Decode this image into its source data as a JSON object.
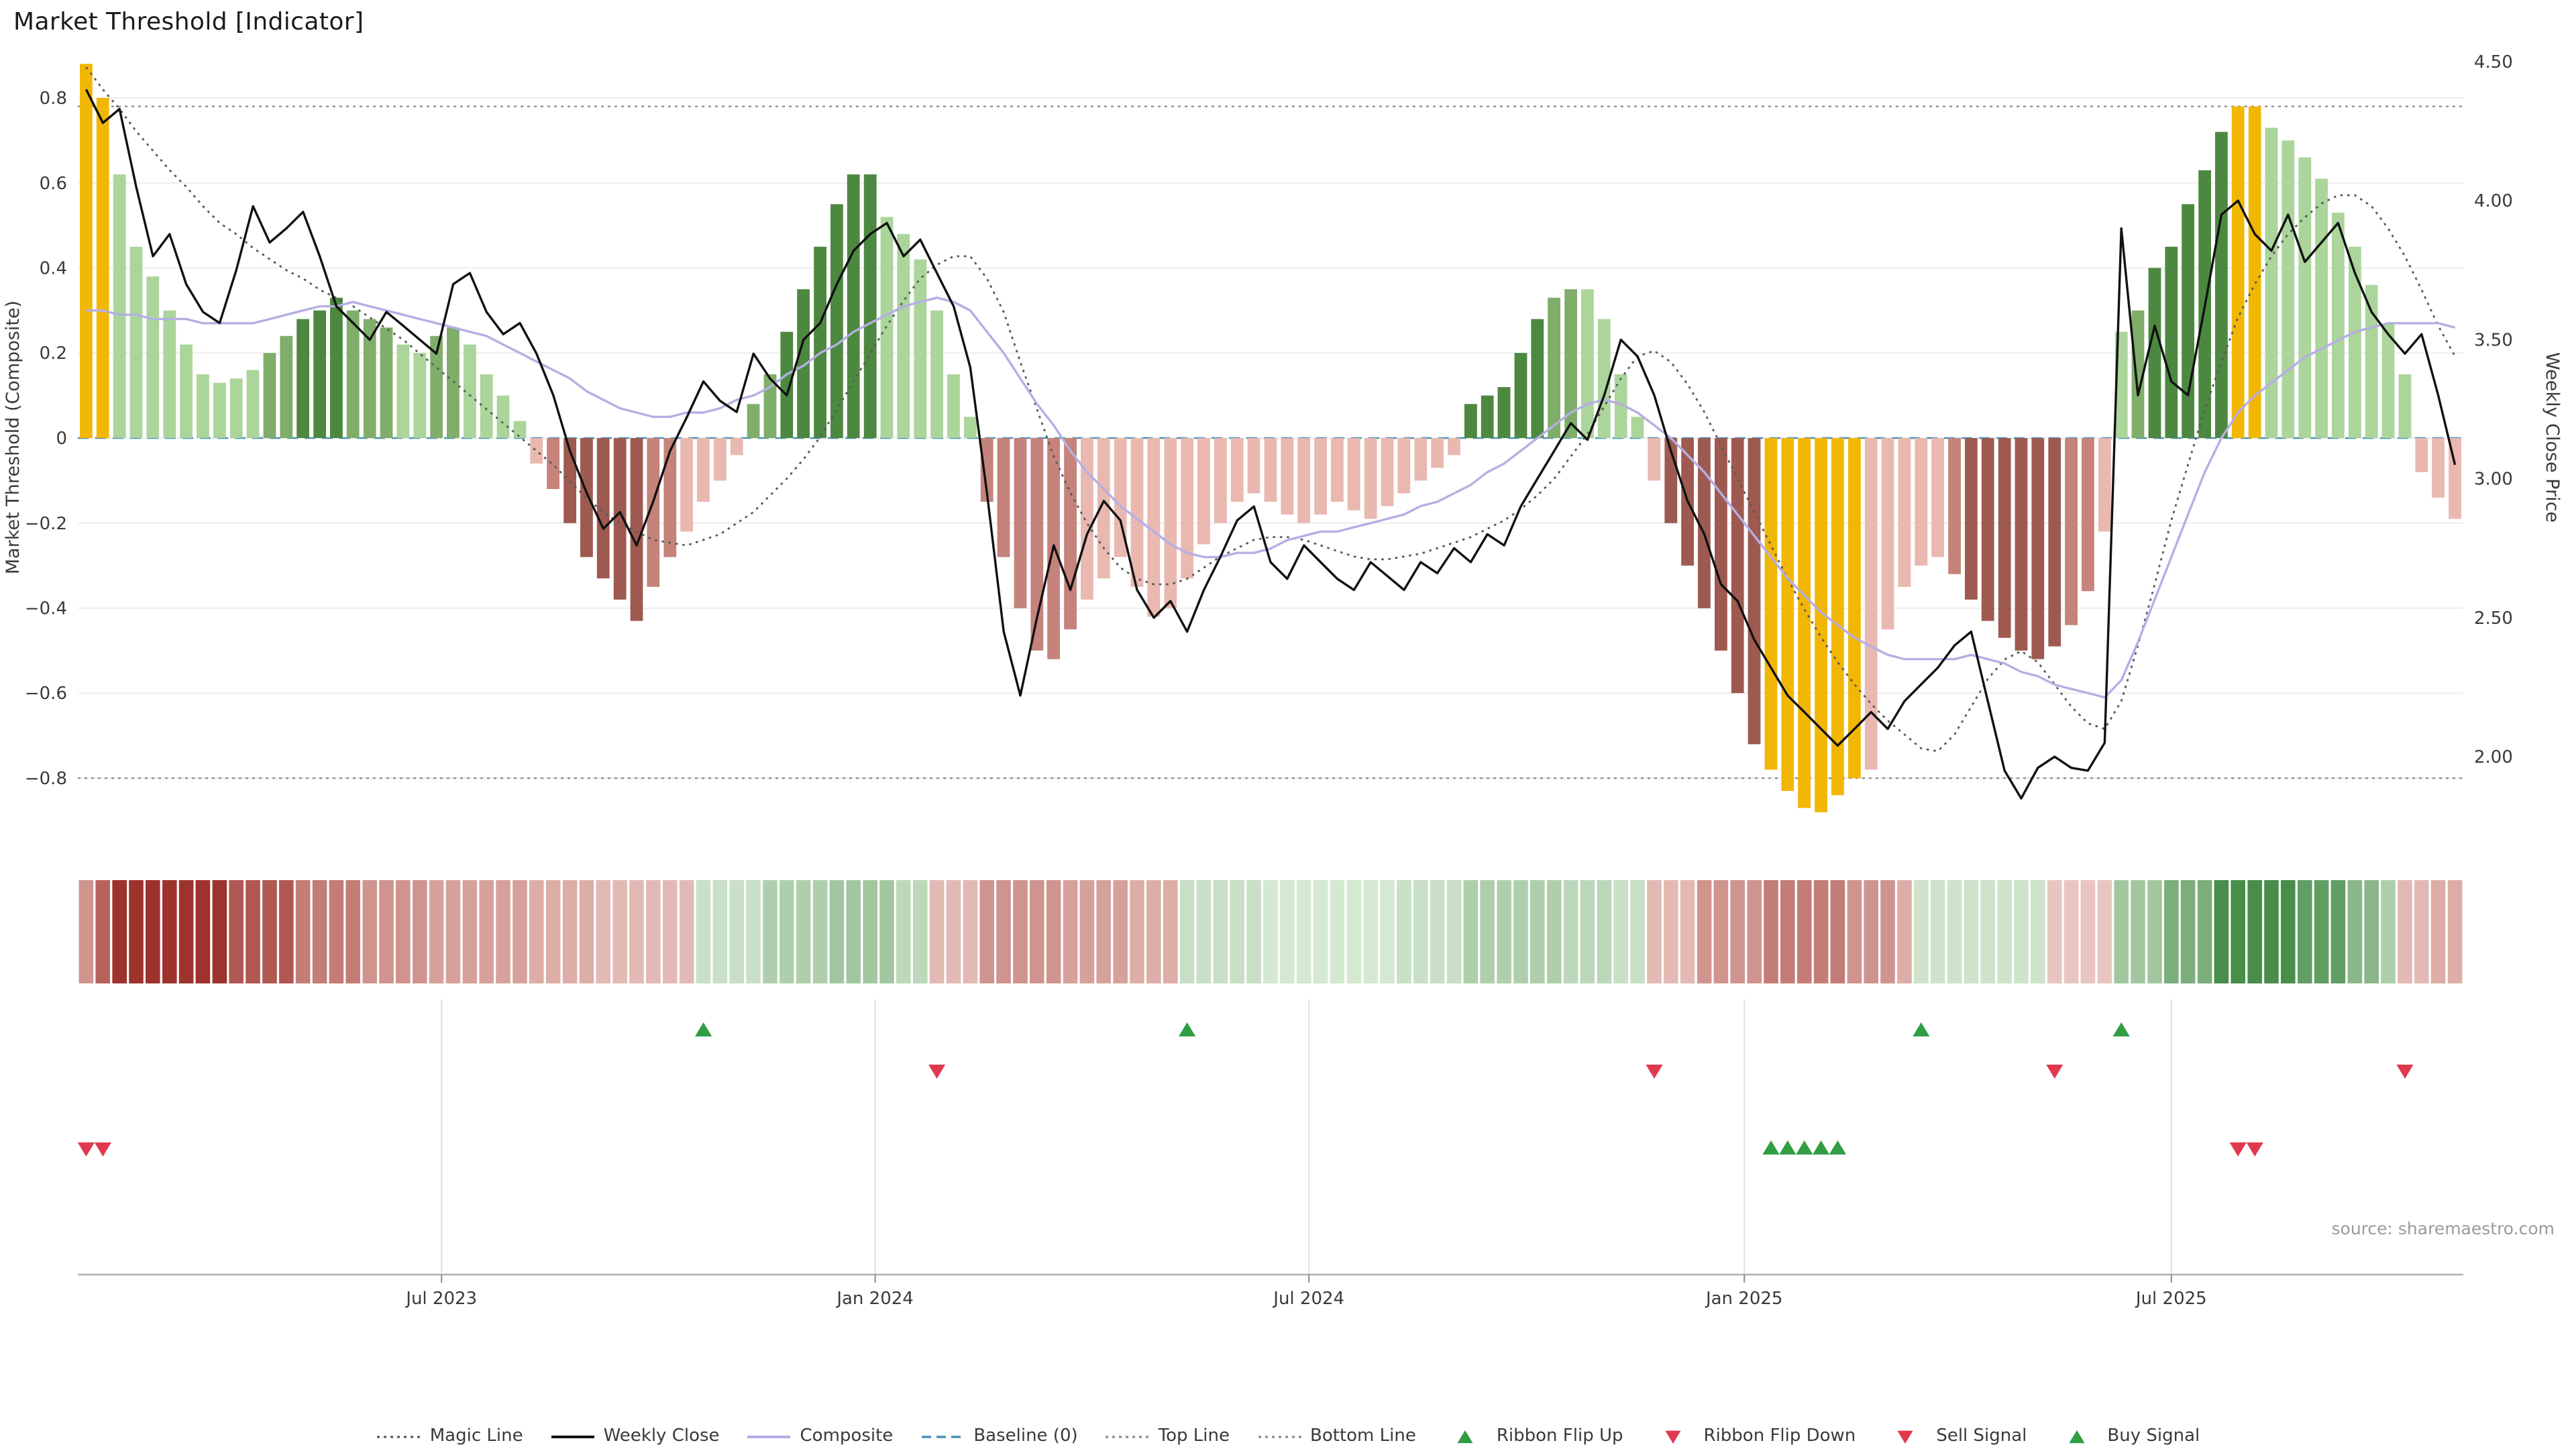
{
  "title": "Market Threshold [Indicator]",
  "source": "source: sharemaestro.com",
  "axes": {
    "left_label": "Market Threshold (Composite)",
    "right_label": "Weekly Close Price",
    "left_ticks": [
      "0.8",
      "0.6",
      "0.4",
      "0.2",
      "0",
      "−0.2",
      "−0.4",
      "−0.6",
      "−0.8"
    ],
    "left_tick_values": [
      0.8,
      0.6,
      0.4,
      0.2,
      0,
      -0.2,
      -0.4,
      -0.6,
      -0.8
    ],
    "right_ticks": [
      "4.50",
      "4.00",
      "3.50",
      "3.00",
      "2.50",
      "2.00"
    ],
    "right_tick_values": [
      4.5,
      4.0,
      3.5,
      3.0,
      2.5,
      2.0
    ],
    "x_ticks": [
      "Jul 2023",
      "Jan 2024",
      "Jul 2024",
      "Jan 2025",
      "Jul 2025"
    ],
    "x_tick_weeks": [
      21.8,
      47.8,
      73.8,
      99.9,
      125.5
    ]
  },
  "palette": {
    "bar_colors": {
      "au": "#f2b705",
      "g1": "#abd59b",
      "g2": "#7fae6a",
      "g3": "#4d8840",
      "r1": "#e9b8b1",
      "r2": "#c5837b",
      "r3": "#9e5a50"
    },
    "weekly_close": "#111111",
    "composite": "#b6aee4",
    "magic_line": "#5a5a5a",
    "baseline": "#4a90b8",
    "top_bottom": "#8a8a8a",
    "signal_green": "#2f9e44",
    "signal_red": "#e0394f",
    "ribbon_red_light": "#f6ded9",
    "ribbon_red_dark": "#9e322c",
    "ribbon_green_light": "#e2f0dd",
    "ribbon_green_dark": "#2f7d33",
    "grid": "#ededed",
    "axis_line": "#b0b0b0"
  },
  "chart_data": {
    "type": "combo (bar histogram + lines + ribbon heatmap + signal markers)",
    "n_weeks": 143,
    "left_axis_range": [
      -0.9,
      0.9
    ],
    "right_axis_range": [
      2.0,
      4.5
    ],
    "top_line": 0.78,
    "bottom_line": -0.8,
    "baseline": 0,
    "threshold_bars": {
      "values": [
        0.88,
        0.8,
        0.62,
        0.45,
        0.38,
        0.3,
        0.22,
        0.15,
        0.13,
        0.14,
        0.16,
        0.2,
        0.24,
        0.28,
        0.3,
        0.33,
        0.3,
        0.28,
        0.26,
        0.22,
        0.2,
        0.24,
        0.26,
        0.22,
        0.15,
        0.1,
        0.04,
        -0.06,
        -0.12,
        -0.2,
        -0.28,
        -0.33,
        -0.38,
        -0.43,
        -0.35,
        -0.28,
        -0.22,
        -0.15,
        -0.1,
        -0.04,
        0.08,
        0.15,
        0.25,
        0.35,
        0.45,
        0.55,
        0.62,
        0.62,
        0.52,
        0.48,
        0.42,
        0.3,
        0.15,
        0.05,
        -0.15,
        -0.28,
        -0.4,
        -0.5,
        -0.52,
        -0.45,
        -0.38,
        -0.33,
        -0.28,
        -0.35,
        -0.42,
        -0.4,
        -0.33,
        -0.25,
        -0.2,
        -0.15,
        -0.13,
        -0.15,
        -0.18,
        -0.2,
        -0.18,
        -0.15,
        -0.17,
        -0.19,
        -0.16,
        -0.13,
        -0.1,
        -0.07,
        -0.04,
        0.08,
        0.1,
        0.12,
        0.2,
        0.28,
        0.33,
        0.35,
        0.35,
        0.28,
        0.15,
        0.05,
        -0.1,
        -0.2,
        -0.3,
        -0.4,
        -0.5,
        -0.6,
        -0.72,
        -0.78,
        -0.83,
        -0.87,
        -0.88,
        -0.84,
        -0.8,
        -0.78,
        -0.45,
        -0.35,
        -0.3,
        -0.28,
        -0.32,
        -0.38,
        -0.43,
        -0.47,
        -0.5,
        -0.52,
        -0.49,
        -0.44,
        -0.36,
        -0.22,
        0.25,
        0.3,
        0.4,
        0.45,
        0.55,
        0.63,
        0.72,
        0.78,
        0.78,
        0.73,
        0.7,
        0.66,
        0.61,
        0.53,
        0.45,
        0.36,
        0.27,
        0.15,
        -0.08,
        -0.14,
        -0.19
      ],
      "colors": [
        "au",
        "au",
        "g1",
        "g1",
        "g1",
        "g1",
        "g1",
        "g1",
        "g1",
        "g1",
        "g1",
        "g2",
        "g2",
        "g3",
        "g3",
        "g3",
        "g2",
        "g2",
        "g2",
        "g1",
        "g1",
        "g2",
        "g2",
        "g1",
        "g1",
        "g1",
        "g1",
        "r1",
        "r2",
        "r3",
        "r3",
        "r3",
        "r3",
        "r3",
        "r2",
        "r2",
        "r1",
        "r1",
        "r1",
        "r1",
        "g2",
        "g2",
        "g3",
        "g3",
        "g3",
        "g3",
        "g3",
        "g3",
        "g1",
        "g1",
        "g1",
        "g1",
        "g1",
        "g1",
        "r2",
        "r2",
        "r2",
        "r2",
        "r2",
        "r2",
        "r1",
        "r1",
        "r1",
        "r1",
        "r1",
        "r1",
        "r1",
        "r1",
        "r1",
        "r1",
        "r1",
        "r1",
        "r1",
        "r1",
        "r1",
        "r1",
        "r1",
        "r1",
        "r1",
        "r1",
        "r1",
        "r1",
        "r1",
        "g3",
        "g3",
        "g3",
        "g3",
        "g3",
        "g2",
        "g2",
        "g1",
        "g1",
        "g1",
        "g1",
        "r1",
        "r3",
        "r3",
        "r3",
        "r3",
        "r3",
        "r3",
        "au",
        "au",
        "au",
        "au",
        "au",
        "au",
        "r1",
        "r1",
        "r1",
        "r1",
        "r1",
        "r2",
        "r3",
        "r3",
        "r3",
        "r3",
        "r3",
        "r3",
        "r2",
        "r2",
        "r1",
        "g1",
        "g2",
        "g3",
        "g3",
        "g3",
        "g3",
        "g3",
        "au",
        "au",
        "g1",
        "g1",
        "g1",
        "g1",
        "g1",
        "g1",
        "g1",
        "g1",
        "g1",
        "r1",
        "r1",
        "r1"
      ]
    },
    "weekly_close": [
      4.4,
      4.28,
      4.33,
      4.05,
      3.8,
      3.88,
      3.7,
      3.6,
      3.56,
      3.75,
      3.98,
      3.85,
      3.9,
      3.96,
      3.8,
      3.62,
      3.56,
      3.5,
      3.6,
      3.55,
      3.5,
      3.45,
      3.7,
      3.74,
      3.6,
      3.52,
      3.56,
      3.45,
      3.3,
      3.1,
      2.95,
      2.82,
      2.88,
      2.76,
      2.92,
      3.1,
      3.22,
      3.35,
      3.28,
      3.24,
      3.45,
      3.36,
      3.3,
      3.5,
      3.56,
      3.7,
      3.82,
      3.88,
      3.92,
      3.8,
      3.86,
      3.74,
      3.62,
      3.4,
      2.95,
      2.45,
      2.22,
      2.5,
      2.76,
      2.6,
      2.8,
      2.92,
      2.85,
      2.6,
      2.5,
      2.56,
      2.45,
      2.6,
      2.72,
      2.85,
      2.9,
      2.7,
      2.64,
      2.76,
      2.7,
      2.64,
      2.6,
      2.7,
      2.65,
      2.6,
      2.7,
      2.66,
      2.75,
      2.7,
      2.8,
      2.76,
      2.9,
      3.0,
      3.1,
      3.2,
      3.14,
      3.3,
      3.5,
      3.44,
      3.3,
      3.1,
      2.92,
      2.8,
      2.62,
      2.56,
      2.42,
      2.32,
      2.22,
      2.16,
      2.1,
      2.04,
      2.1,
      2.16,
      2.1,
      2.2,
      2.26,
      2.32,
      2.4,
      2.45,
      2.2,
      1.95,
      1.85,
      1.96,
      2.0,
      1.96,
      1.95,
      2.05,
      3.9,
      3.3,
      3.55,
      3.35,
      3.3,
      3.62,
      3.95,
      4.0,
      3.88,
      3.82,
      3.95,
      3.78,
      3.85,
      3.92,
      3.74,
      3.6,
      3.52,
      3.45,
      3.52,
      3.3,
      3.05
    ],
    "composite": [
      0.3,
      0.3,
      0.29,
      0.29,
      0.28,
      0.28,
      0.28,
      0.27,
      0.27,
      0.27,
      0.27,
      0.28,
      0.29,
      0.3,
      0.31,
      0.31,
      0.32,
      0.31,
      0.3,
      0.29,
      0.28,
      0.27,
      0.26,
      0.25,
      0.24,
      0.22,
      0.2,
      0.18,
      0.16,
      0.14,
      0.11,
      0.09,
      0.07,
      0.06,
      0.05,
      0.05,
      0.06,
      0.06,
      0.07,
      0.09,
      0.1,
      0.12,
      0.15,
      0.17,
      0.2,
      0.22,
      0.25,
      0.27,
      0.29,
      0.31,
      0.32,
      0.33,
      0.32,
      0.3,
      0.25,
      0.2,
      0.14,
      0.08,
      0.03,
      -0.03,
      -0.08,
      -0.12,
      -0.16,
      -0.19,
      -0.22,
      -0.25,
      -0.27,
      -0.28,
      -0.28,
      -0.27,
      -0.27,
      -0.26,
      -0.24,
      -0.23,
      -0.22,
      -0.22,
      -0.21,
      -0.2,
      -0.19,
      -0.18,
      -0.16,
      -0.15,
      -0.13,
      -0.11,
      -0.08,
      -0.06,
      -0.03,
      0.0,
      0.03,
      0.06,
      0.08,
      0.09,
      0.08,
      0.06,
      0.03,
      0.0,
      -0.04,
      -0.08,
      -0.13,
      -0.18,
      -0.23,
      -0.28,
      -0.33,
      -0.37,
      -0.41,
      -0.44,
      -0.47,
      -0.49,
      -0.51,
      -0.52,
      -0.52,
      -0.52,
      -0.52,
      -0.51,
      -0.52,
      -0.53,
      -0.55,
      -0.56,
      -0.58,
      -0.59,
      -0.6,
      -0.61,
      -0.57,
      -0.48,
      -0.38,
      -0.28,
      -0.18,
      -0.08,
      0.0,
      0.06,
      0.1,
      0.13,
      0.16,
      0.19,
      0.21,
      0.23,
      0.25,
      0.26,
      0.27,
      0.27,
      0.27,
      0.27,
      0.26
    ],
    "magic_line": [
      4.48,
      4.4,
      4.33,
      4.25,
      4.18,
      4.11,
      4.05,
      3.98,
      3.92,
      3.88,
      3.83,
      3.79,
      3.75,
      3.72,
      3.68,
      3.65,
      3.62,
      3.58,
      3.54,
      3.5,
      3.45,
      3.4,
      3.35,
      3.3,
      3.25,
      3.2,
      3.15,
      3.1,
      3.05,
      2.99,
      2.93,
      2.88,
      2.84,
      2.81,
      2.78,
      2.77,
      2.76,
      2.78,
      2.8,
      2.84,
      2.88,
      2.94,
      3.0,
      3.07,
      3.15,
      3.25,
      3.35,
      3.45,
      3.55,
      3.64,
      3.72,
      3.77,
      3.8,
      3.8,
      3.72,
      3.6,
      3.42,
      3.25,
      3.08,
      2.95,
      2.84,
      2.75,
      2.68,
      2.64,
      2.62,
      2.62,
      2.64,
      2.68,
      2.72,
      2.75,
      2.78,
      2.79,
      2.79,
      2.78,
      2.76,
      2.74,
      2.72,
      2.71,
      2.71,
      2.72,
      2.73,
      2.75,
      2.77,
      2.79,
      2.82,
      2.85,
      2.89,
      2.94,
      3.0,
      3.08,
      3.16,
      3.26,
      3.36,
      3.44,
      3.46,
      3.42,
      3.34,
      3.24,
      3.12,
      3.0,
      2.88,
      2.76,
      2.64,
      2.53,
      2.43,
      2.34,
      2.26,
      2.19,
      2.13,
      2.08,
      2.03,
      2.02,
      2.08,
      2.18,
      2.28,
      2.35,
      2.38,
      2.34,
      2.26,
      2.18,
      2.12,
      2.1,
      2.2,
      2.4,
      2.62,
      2.85,
      3.05,
      3.25,
      3.42,
      3.58,
      3.7,
      3.8,
      3.88,
      3.94,
      3.99,
      4.02,
      4.02,
      3.98,
      3.9,
      3.8,
      3.68,
      3.55,
      3.44
    ],
    "ribbon": [
      -0.5,
      -0.7,
      -0.9,
      -0.9,
      -0.9,
      -0.9,
      -0.9,
      -0.9,
      -0.9,
      -0.75,
      -0.75,
      -0.75,
      -0.75,
      -0.6,
      -0.6,
      -0.6,
      -0.6,
      -0.5,
      -0.5,
      -0.5,
      -0.5,
      -0.45,
      -0.45,
      -0.45,
      -0.45,
      -0.45,
      -0.45,
      -0.4,
      -0.4,
      -0.4,
      -0.4,
      -0.35,
      -0.35,
      -0.35,
      -0.35,
      -0.35,
      -0.35,
      0.3,
      0.3,
      0.3,
      0.3,
      0.4,
      0.4,
      0.4,
      0.4,
      0.45,
      0.45,
      0.45,
      0.45,
      0.35,
      0.35,
      -0.35,
      -0.35,
      -0.35,
      -0.5,
      -0.5,
      -0.5,
      -0.5,
      -0.5,
      -0.45,
      -0.45,
      -0.45,
      -0.45,
      -0.4,
      -0.4,
      -0.4,
      0.3,
      0.3,
      0.3,
      0.3,
      0.3,
      0.25,
      0.25,
      0.25,
      0.25,
      0.25,
      0.25,
      0.25,
      0.25,
      0.3,
      0.3,
      0.3,
      0.3,
      0.4,
      0.4,
      0.4,
      0.4,
      0.4,
      0.4,
      0.35,
      0.35,
      0.35,
      0.3,
      0.3,
      -0.35,
      -0.35,
      -0.35,
      -0.5,
      -0.5,
      -0.5,
      -0.5,
      -0.6,
      -0.6,
      -0.6,
      -0.6,
      -0.6,
      -0.5,
      -0.5,
      -0.5,
      -0.4,
      0.28,
      0.28,
      0.28,
      0.28,
      0.28,
      0.28,
      0.28,
      0.28,
      -0.3,
      -0.3,
      -0.3,
      -0.3,
      0.45,
      0.45,
      0.45,
      0.6,
      0.6,
      0.6,
      0.8,
      0.8,
      0.8,
      0.8,
      0.8,
      0.7,
      0.7,
      0.7,
      0.55,
      0.55,
      0.4,
      -0.35,
      -0.35,
      -0.4,
      -0.4
    ],
    "signals": {
      "ribbon_flip_up_weeks": [
        37,
        66,
        110,
        122
      ],
      "ribbon_flip_down_weeks": [
        51,
        94,
        118,
        139
      ],
      "buy_signal_weeks": [
        101,
        102,
        103,
        104,
        105
      ],
      "sell_signal_weeks": [
        0,
        1,
        129,
        130
      ]
    }
  },
  "legend": {
    "items": [
      {
        "label": "Magic Line",
        "swatch": "dotted-dark"
      },
      {
        "label": "Weekly Close",
        "swatch": "solid-black"
      },
      {
        "label": "Composite",
        "swatch": "solid-purple"
      },
      {
        "label": "Baseline (0)",
        "swatch": "dashed-blue"
      },
      {
        "label": "Top Line",
        "swatch": "dotted-gray"
      },
      {
        "label": "Bottom Line",
        "swatch": "dotted-gray"
      },
      {
        "label": "Ribbon Flip Up",
        "swatch": "tri-up-green"
      },
      {
        "label": "Ribbon Flip Down",
        "swatch": "tri-down-red"
      },
      {
        "label": "Sell Signal",
        "swatch": "tri-down-red"
      },
      {
        "label": "Buy Signal",
        "swatch": "tri-up-green"
      }
    ]
  }
}
